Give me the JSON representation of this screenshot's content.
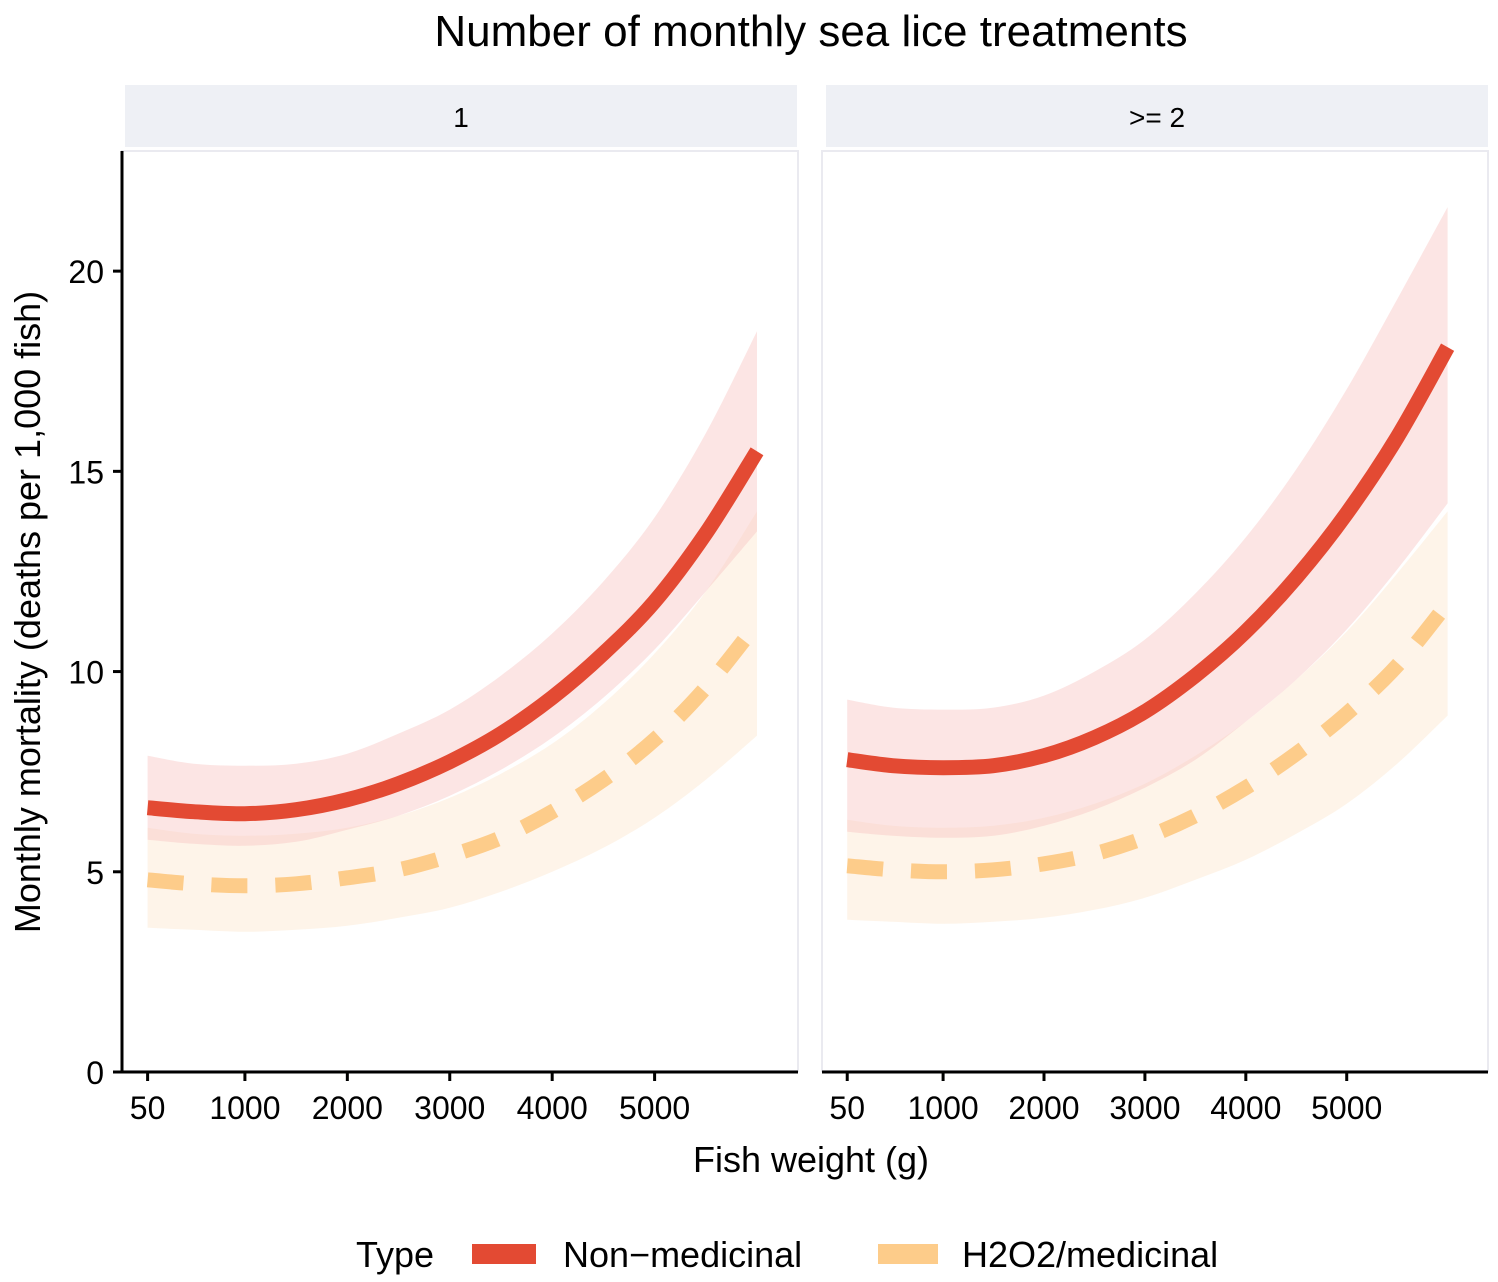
{
  "chart_data": {
    "type": "line",
    "title": "Number of monthly sea lice treatments",
    "xlabel": "Fish weight (g)",
    "ylabel": "Monthly mortality (deaths per 1,000 fish)",
    "x_ticks": [
      50,
      1000,
      2000,
      3000,
      4000,
      5000
    ],
    "x_tick_labels": [
      "50",
      "1000",
      "2000",
      "3000",
      "4000",
      "5000"
    ],
    "xlim": [
      -200,
      6400
    ],
    "y_ticks": [
      0,
      5,
      10,
      15,
      20
    ],
    "y_tick_labels": [
      "0",
      "5",
      "10",
      "15",
      "20"
    ],
    "ylim": [
      0,
      23
    ],
    "legend": {
      "title": "Type",
      "position": "bottom",
      "entries": [
        {
          "label": "Non−medicinal",
          "color": "#e34a33",
          "style": "solid"
        },
        {
          "label": "H2O2/medicinal",
          "color": "#fdcc8a",
          "style": "dashed"
        }
      ]
    },
    "series_colors": {
      "Non-medicinal": {
        "line": "#e34a33",
        "band": "#f9c6c4",
        "band_opacity": 0.45
      },
      "H2O2/medicinal": {
        "line": "#fdcc8a",
        "band": "#fde0c0",
        "band_opacity": 0.35
      }
    },
    "x": [
      50,
      500,
      1000,
      1500,
      2000,
      2500,
      3000,
      3500,
      4000,
      4500,
      5000,
      5500,
      6000
    ],
    "panels": [
      {
        "label": "1",
        "series": [
          {
            "name": "Non-medicinal",
            "values": [
              6.6,
              6.5,
              6.45,
              6.55,
              6.8,
              7.2,
              7.75,
              8.45,
              9.35,
              10.45,
              11.75,
              13.45,
              15.5
            ],
            "lower": [
              5.8,
              5.7,
              5.65,
              5.75,
              6.05,
              6.4,
              6.9,
              7.55,
              8.35,
              9.35,
              10.55,
              12.0,
              13.5
            ],
            "upper": [
              7.9,
              7.7,
              7.65,
              7.7,
              7.95,
              8.45,
              9.05,
              9.9,
              10.95,
              12.25,
              13.85,
              15.95,
              18.5
            ]
          },
          {
            "name": "H2O2/medicinal",
            "values": [
              4.8,
              4.7,
              4.65,
              4.7,
              4.85,
              5.05,
              5.4,
              5.85,
              6.5,
              7.3,
              8.3,
              9.6,
              11.2
            ],
            "lower": [
              3.6,
              3.55,
              3.5,
              3.55,
              3.65,
              3.85,
              4.1,
              4.5,
              5.0,
              5.6,
              6.35,
              7.3,
              8.4
            ],
            "upper": [
              6.1,
              5.95,
              5.9,
              5.95,
              6.1,
              6.4,
              6.85,
              7.45,
              8.2,
              9.2,
              10.45,
              12.0,
              14.0
            ]
          }
        ]
      },
      {
        "label": ">= 2",
        "series": [
          {
            "name": "Non-medicinal",
            "values": [
              7.8,
              7.65,
              7.6,
              7.65,
              7.9,
              8.35,
              9.0,
              9.9,
              11.0,
              12.35,
              13.95,
              15.85,
              18.1
            ],
            "lower": [
              6.0,
              5.9,
              5.85,
              5.9,
              6.15,
              6.55,
              7.1,
              7.8,
              8.75,
              9.8,
              11.05,
              12.55,
              14.2
            ],
            "upper": [
              9.3,
              9.1,
              9.05,
              9.1,
              9.4,
              10.0,
              10.8,
              11.95,
              13.35,
              15.05,
              17.05,
              19.3,
              21.6
            ]
          },
          {
            "name": "H2O2/medicinal",
            "values": [
              5.15,
              5.05,
              5.0,
              5.05,
              5.2,
              5.45,
              5.85,
              6.4,
              7.1,
              7.95,
              8.95,
              10.15,
              11.7
            ],
            "lower": [
              3.8,
              3.75,
              3.7,
              3.75,
              3.85,
              4.05,
              4.35,
              4.8,
              5.3,
              5.95,
              6.7,
              7.7,
              8.9
            ],
            "upper": [
              6.3,
              6.15,
              6.1,
              6.15,
              6.35,
              6.7,
              7.2,
              7.9,
              8.75,
              9.8,
              11.0,
              12.45,
              14.0
            ]
          }
        ]
      }
    ]
  }
}
